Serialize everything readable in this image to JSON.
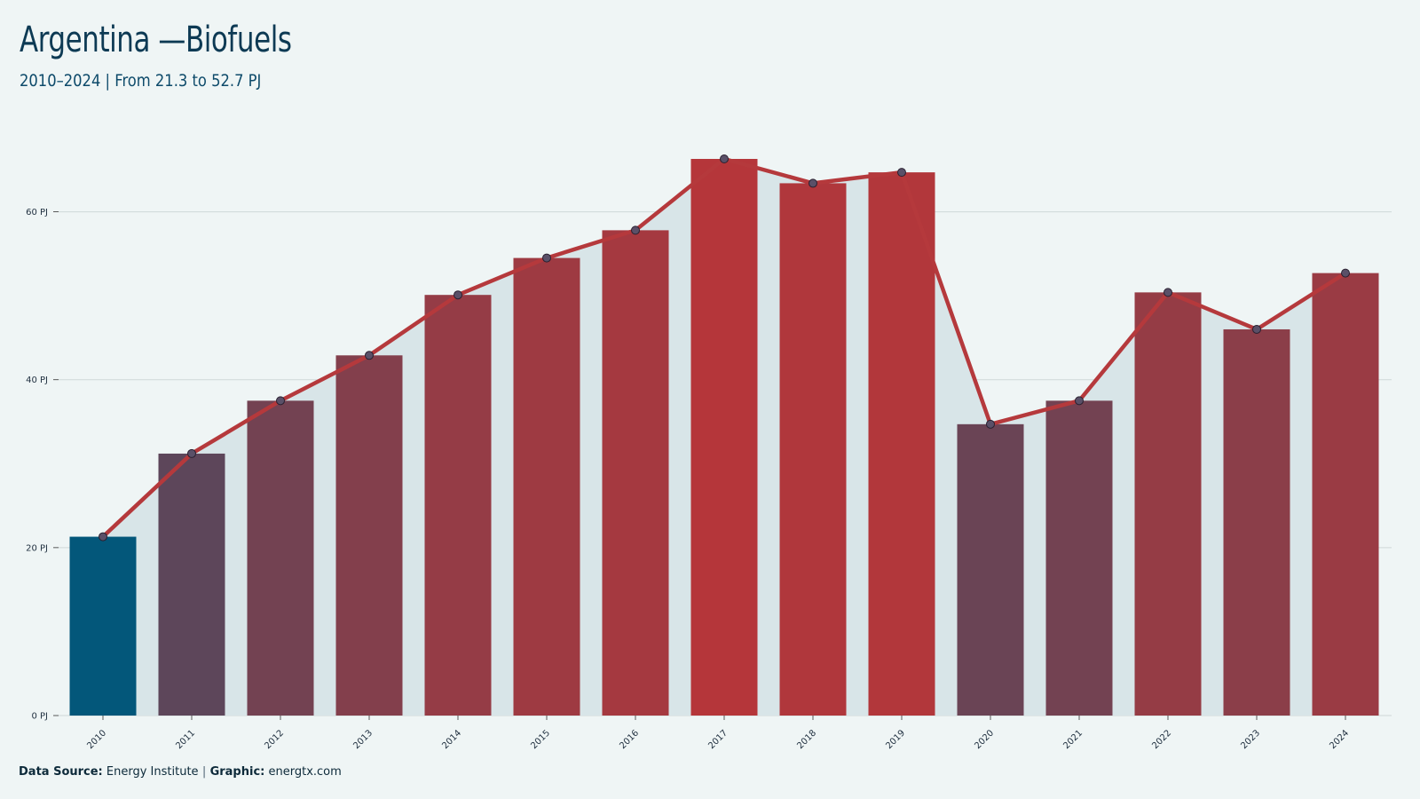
{
  "header": {
    "title": "Argentina —Biofuels",
    "subtitle": "2010–2024 | From 21.3 to 52.7 PJ"
  },
  "footer": {
    "source_label": "Data Source:",
    "source_value": "Energy Institute",
    "separator": "|",
    "graphic_label": "Graphic:",
    "graphic_value": "energtx.com"
  },
  "chart_data": {
    "type": "bar",
    "categories": [
      "2010",
      "2011",
      "2012",
      "2013",
      "2014",
      "2015",
      "2016",
      "2017",
      "2018",
      "2019",
      "2020",
      "2021",
      "2022",
      "2023",
      "2024"
    ],
    "values": [
      21.3,
      31.2,
      37.5,
      42.9,
      50.1,
      54.5,
      57.8,
      66.3,
      63.4,
      64.7,
      34.7,
      37.5,
      50.4,
      46.0,
      52.7
    ],
    "overlay": "line with markers over the same values, shaded area beneath",
    "ylim": [
      0,
      70
    ],
    "yticks": [
      0,
      20,
      40,
      60
    ],
    "ytick_labels": [
      "0 PJ",
      "20 PJ",
      "40 PJ",
      "60 PJ"
    ],
    "grid": true,
    "colors": {
      "bar_low": "#03577a",
      "bar_high": "#b5363a",
      "line": "#b5393c",
      "marker_fill": "#5a5068",
      "marker_stroke": "#2a2030",
      "area_fill": "#d8e5e8",
      "grid": "#cfd8d8"
    }
  }
}
